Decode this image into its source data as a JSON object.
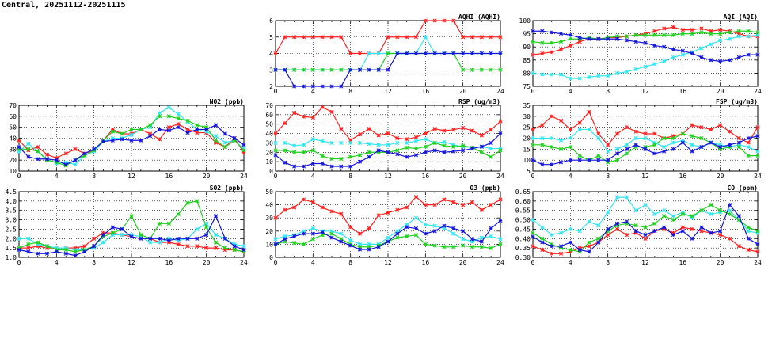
{
  "title": "Central, 20251112-20251115",
  "colors": {
    "red": "#ff2020",
    "cyan": "#33e6f0",
    "green": "#20d020",
    "blue": "#1515dd"
  },
  "chart_data": [
    {
      "id": "aqhi",
      "type": "line",
      "title": "AQHI (AQHI)",
      "xlim": [
        0,
        24
      ],
      "xticks": [
        0,
        4,
        8,
        12,
        16,
        20,
        24
      ],
      "ylim": [
        2,
        6
      ],
      "yticks": [
        2,
        3,
        4,
        5,
        6
      ],
      "series": [
        {
          "name": "red",
          "values": [
            4,
            5,
            5,
            5,
            5,
            5,
            5,
            5,
            4,
            4,
            4,
            4,
            5,
            5,
            5,
            5,
            6,
            6,
            6,
            6,
            5,
            5,
            5,
            5,
            5
          ]
        },
        {
          "name": "cyan",
          "values": [
            3,
            3,
            3,
            3,
            3,
            3,
            3,
            3,
            3,
            3,
            4,
            4,
            4,
            4,
            4,
            4,
            5,
            4,
            4,
            4,
            4,
            4,
            4,
            4,
            4
          ]
        },
        {
          "name": "green",
          "values": [
            3,
            3,
            3,
            3,
            3,
            3,
            3,
            3,
            3,
            3,
            3,
            3,
            4,
            4,
            4,
            4,
            4,
            4,
            4,
            4,
            3,
            3,
            3,
            3,
            3
          ]
        },
        {
          "name": "blue",
          "values": [
            3,
            3,
            2,
            2,
            2,
            2,
            2,
            2,
            3,
            3,
            3,
            3,
            3,
            4,
            4,
            4,
            4,
            4,
            4,
            4,
            4,
            4,
            4,
            4,
            4
          ]
        }
      ]
    },
    {
      "id": "aqi",
      "type": "line",
      "title": "AQI (AQI)",
      "xlim": [
        0,
        24
      ],
      "xticks": [
        0,
        4,
        8,
        12,
        16,
        20,
        24
      ],
      "ylim": [
        75,
        100
      ],
      "yticks": [
        75,
        80,
        85,
        90,
        95,
        100
      ],
      "series": [
        {
          "name": "red",
          "values": [
            87,
            87.5,
            88,
            89,
            90.5,
            92,
            93,
            93,
            93.5,
            93.5,
            94,
            94.5,
            95,
            96,
            97,
            97.5,
            96.5,
            96.5,
            97,
            96,
            96.5,
            96,
            95,
            94,
            94
          ]
        },
        {
          "name": "cyan",
          "values": [
            80,
            79.5,
            79.5,
            79.5,
            78,
            78,
            78.5,
            79,
            79,
            80,
            80.5,
            81.5,
            82.5,
            83.5,
            84.5,
            86,
            87,
            88,
            89.5,
            91,
            92.5,
            93,
            94,
            94,
            94.5
          ]
        },
        {
          "name": "green",
          "values": [
            92,
            91.5,
            91.5,
            92,
            93,
            93,
            93.5,
            93,
            93.5,
            94,
            94,
            94.5,
            94.5,
            94.5,
            94.5,
            94.5,
            95,
            95,
            95.5,
            95,
            95,
            95.5,
            96,
            96,
            95.5
          ]
        },
        {
          "name": "blue",
          "values": [
            96,
            96,
            95.5,
            95,
            94.5,
            93.5,
            93,
            93,
            93,
            93,
            92.5,
            92,
            91.5,
            90.5,
            90,
            89,
            88.5,
            87.5,
            86,
            85,
            84.5,
            85,
            86,
            87,
            87
          ]
        }
      ]
    },
    {
      "id": "no2",
      "type": "line",
      "title": "NO2 (ppb)",
      "xlim": [
        0,
        24
      ],
      "xticks": [
        0,
        4,
        8,
        12,
        16,
        20,
        24
      ],
      "ylim": [
        10,
        70
      ],
      "yticks": [
        10,
        20,
        30,
        40,
        50,
        60,
        70
      ],
      "series": [
        {
          "name": "red",
          "values": [
            38,
            29,
            32,
            25,
            22,
            26,
            30,
            26,
            29,
            38,
            48,
            44,
            44,
            48,
            44,
            39,
            50,
            53,
            48,
            45,
            45,
            36,
            32,
            40,
            27
          ]
        },
        {
          "name": "cyan",
          "values": [
            28,
            35,
            28,
            21,
            17,
            18,
            16,
            24,
            28,
            37,
            40,
            40,
            43,
            48,
            50,
            63,
            68,
            62,
            55,
            48,
            46,
            42,
            36,
            38,
            30
          ]
        },
        {
          "name": "green",
          "values": [
            30,
            30,
            28,
            20,
            18,
            15,
            20,
            24,
            29,
            38,
            46,
            44,
            48,
            48,
            52,
            60,
            60,
            58,
            56,
            52,
            50,
            38,
            32,
            38,
            29
          ]
        },
        {
          "name": "blue",
          "values": [
            32,
            23,
            21,
            21,
            20,
            16,
            20,
            26,
            30,
            37,
            38,
            39,
            38,
            38,
            42,
            48,
            47,
            50,
            45,
            48,
            48,
            52,
            44,
            40,
            34
          ]
        }
      ]
    },
    {
      "id": "rsp",
      "type": "line",
      "title": "RSP (ug/m3)",
      "xlim": [
        0,
        24
      ],
      "xticks": [
        0,
        4,
        8,
        12,
        16,
        20,
        24
      ],
      "ylim": [
        0,
        70
      ],
      "yticks": [
        0,
        10,
        20,
        30,
        40,
        50,
        60,
        70
      ],
      "series": [
        {
          "name": "red",
          "values": [
            40,
            51,
            62,
            58,
            57,
            68,
            63,
            45,
            33,
            39,
            45,
            38,
            40,
            35,
            34,
            36,
            40,
            45,
            43,
            44,
            46,
            43,
            38,
            44,
            53
          ]
        },
        {
          "name": "cyan",
          "values": [
            30,
            30,
            27,
            28,
            34,
            32,
            30,
            30,
            30,
            30,
            29,
            28,
            28,
            30,
            30,
            32,
            34,
            30,
            31,
            28,
            26,
            25,
            26,
            24,
            24
          ]
        },
        {
          "name": "green",
          "values": [
            22,
            22,
            20,
            20,
            22,
            16,
            13,
            13,
            15,
            17,
            20,
            20,
            20,
            22,
            25,
            24,
            26,
            30,
            27,
            26,
            27,
            25,
            20,
            15,
            22
          ]
        },
        {
          "name": "blue",
          "values": [
            17,
            9,
            5,
            5,
            8,
            8,
            5,
            5,
            5,
            10,
            15,
            22,
            20,
            18,
            15,
            17,
            20,
            22,
            20,
            21,
            22,
            24,
            26,
            30,
            40
          ]
        }
      ]
    },
    {
      "id": "fsp",
      "type": "line",
      "title": "FSP (ug/m3)",
      "xlim": [
        0,
        24
      ],
      "xticks": [
        0,
        4,
        8,
        12,
        16,
        20,
        24
      ],
      "ylim": [
        5,
        35
      ],
      "yticks": [
        5,
        10,
        15,
        20,
        25,
        30,
        35
      ],
      "series": [
        {
          "name": "red",
          "values": [
            24,
            26,
            30,
            28,
            24,
            27,
            32,
            22,
            17,
            22,
            25,
            23,
            22,
            22,
            20,
            21,
            22,
            26,
            25,
            24,
            26,
            23,
            20,
            18,
            25
          ]
        },
        {
          "name": "cyan",
          "values": [
            20,
            20,
            20,
            19,
            20,
            24,
            24,
            20,
            14,
            15,
            17,
            20,
            20,
            18,
            16,
            18,
            19,
            17,
            16,
            18,
            17,
            16,
            17,
            16,
            14
          ]
        },
        {
          "name": "green",
          "values": [
            17,
            17,
            16,
            15,
            16,
            12,
            10,
            12,
            9,
            10,
            13,
            16,
            16,
            17,
            20,
            20,
            22,
            21,
            20,
            18,
            15,
            16,
            16,
            12,
            12
          ]
        },
        {
          "name": "blue",
          "values": [
            10,
            8,
            8,
            9,
            10,
            10,
            10,
            10,
            10,
            13,
            15,
            17,
            15,
            13,
            14,
            15,
            18,
            14,
            16,
            18,
            16,
            17,
            18,
            20,
            21
          ]
        }
      ]
    },
    {
      "id": "so2",
      "type": "line",
      "title": "SO2 (ppb)",
      "xlim": [
        0,
        24
      ],
      "xticks": [
        0,
        4,
        8,
        12,
        16,
        20,
        24
      ],
      "ylim": [
        1,
        4.5
      ],
      "yticks": [
        1.0,
        1.5,
        2.0,
        2.5,
        3.0,
        3.5,
        4.0,
        4.5
      ],
      "series": [
        {
          "name": "red",
          "values": [
            1.5,
            1.5,
            1.6,
            1.5,
            1.5,
            1.5,
            1.5,
            1.6,
            2.0,
            2.3,
            2.3,
            2.2,
            2.1,
            2.0,
            2.0,
            1.8,
            1.8,
            1.7,
            1.6,
            1.6,
            1.5,
            1.5,
            1.4,
            1.4,
            1.3
          ]
        },
        {
          "name": "cyan",
          "values": [
            2.0,
            2.0,
            1.7,
            1.6,
            1.5,
            1.5,
            1.4,
            1.4,
            1.5,
            1.8,
            2.2,
            2.2,
            2.2,
            2.1,
            1.8,
            1.8,
            2.0,
            1.9,
            2.0,
            2.5,
            2.8,
            2.2,
            2.0,
            1.7,
            1.6
          ]
        },
        {
          "name": "green",
          "values": [
            1.5,
            1.7,
            1.8,
            1.6,
            1.4,
            1.4,
            1.3,
            1.4,
            1.6,
            2.1,
            2.3,
            2.5,
            3.2,
            2.2,
            2.0,
            2.8,
            2.8,
            3.3,
            3.9,
            4.0,
            2.6,
            1.8,
            1.5,
            1.4,
            1.3
          ]
        },
        {
          "name": "blue",
          "values": [
            1.4,
            1.3,
            1.2,
            1.2,
            1.3,
            1.2,
            1.1,
            1.3,
            1.6,
            2.2,
            2.6,
            2.5,
            2.1,
            2.0,
            2.0,
            2.0,
            1.9,
            2.0,
            2.0,
            2.0,
            2.2,
            3.2,
            2.0,
            1.6,
            1.4
          ]
        }
      ]
    },
    {
      "id": "o3",
      "type": "line",
      "title": "O3 (ppb)",
      "xlim": [
        0,
        24
      ],
      "xticks": [
        0,
        4,
        8,
        12,
        16,
        20,
        24
      ],
      "ylim": [
        0,
        50
      ],
      "yticks": [
        0,
        10,
        20,
        30,
        40,
        50
      ],
      "series": [
        {
          "name": "red",
          "values": [
            30,
            36,
            38,
            44,
            42,
            38,
            35,
            33,
            23,
            18,
            22,
            32,
            34,
            36,
            38,
            46,
            40,
            40,
            44,
            42,
            40,
            42,
            36,
            40,
            44
          ]
        },
        {
          "name": "cyan",
          "values": [
            14,
            16,
            17,
            20,
            22,
            20,
            20,
            18,
            13,
            10,
            10,
            10,
            15,
            20,
            25,
            30,
            25,
            24,
            22,
            18,
            14,
            12,
            15,
            16,
            14
          ]
        },
        {
          "name": "green",
          "values": [
            10,
            12,
            11,
            10,
            14,
            17,
            18,
            14,
            10,
            8,
            8,
            9,
            12,
            15,
            16,
            17,
            10,
            9,
            8,
            8,
            9,
            8,
            8,
            7,
            10
          ]
        },
        {
          "name": "blue",
          "values": [
            10,
            14,
            16,
            18,
            18,
            19,
            15,
            12,
            9,
            6,
            6,
            8,
            12,
            18,
            23,
            22,
            18,
            20,
            24,
            22,
            20,
            14,
            12,
            22,
            28
          ]
        }
      ]
    },
    {
      "id": "co",
      "type": "line",
      "title": "CO (ppm)",
      "xlim": [
        0,
        24
      ],
      "xticks": [
        0,
        4,
        8,
        12,
        16,
        20,
        24
      ],
      "ylim": [
        0.3,
        0.65
      ],
      "yticks": [
        0.3,
        0.35,
        0.4,
        0.45,
        0.5,
        0.55,
        0.6,
        0.65
      ],
      "series": [
        {
          "name": "red",
          "values": [
            0.36,
            0.34,
            0.32,
            0.32,
            0.33,
            0.35,
            0.36,
            0.38,
            0.42,
            0.45,
            0.42,
            0.43,
            0.4,
            0.44,
            0.45,
            0.43,
            0.46,
            0.45,
            0.44,
            0.43,
            0.42,
            0.4,
            0.36,
            0.34,
            0.33
          ]
        },
        {
          "name": "cyan",
          "values": [
            0.5,
            0.46,
            0.42,
            0.43,
            0.45,
            0.44,
            0.49,
            0.47,
            0.54,
            0.62,
            0.62,
            0.55,
            0.58,
            0.53,
            0.55,
            0.52,
            0.54,
            0.51,
            0.55,
            0.53,
            0.54,
            0.55,
            0.5,
            0.44,
            0.43
          ]
        },
        {
          "name": "green",
          "values": [
            0.43,
            0.4,
            0.37,
            0.35,
            0.34,
            0.33,
            0.38,
            0.4,
            0.44,
            0.47,
            0.48,
            0.47,
            0.46,
            0.48,
            0.52,
            0.5,
            0.53,
            0.52,
            0.55,
            0.58,
            0.55,
            0.53,
            0.5,
            0.46,
            0.44
          ]
        },
        {
          "name": "blue",
          "values": [
            0.41,
            0.38,
            0.36,
            0.36,
            0.38,
            0.34,
            0.33,
            0.38,
            0.45,
            0.48,
            0.49,
            0.44,
            0.42,
            0.44,
            0.46,
            0.42,
            0.44,
            0.4,
            0.46,
            0.43,
            0.44,
            0.58,
            0.52,
            0.4,
            0.37
          ]
        }
      ]
    }
  ]
}
